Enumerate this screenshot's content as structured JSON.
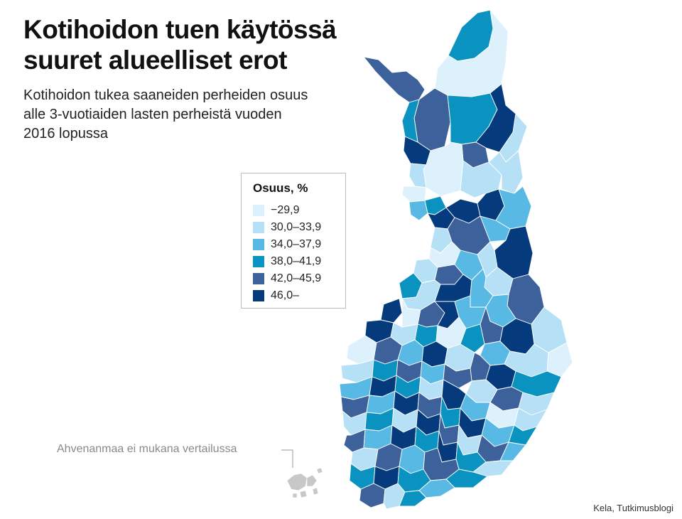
{
  "title": {
    "line1": "Kotihoidon tuen käytössä",
    "line2": "suuret alueelliset erot"
  },
  "subtitle": {
    "line1": "Kotihoidon tukea saaneiden perheiden osuus",
    "line2": "alle 3-vuotiaiden lasten perheistä vuoden",
    "line3": "2016 lopussa"
  },
  "legend": {
    "title": "Osuus, %",
    "items": [
      {
        "label": "−29,9",
        "color": "#dcf1fb"
      },
      {
        "label": "30,0–33,9",
        "color": "#b6e0f5"
      },
      {
        "label": "34,0–37,9",
        "color": "#59b9e5"
      },
      {
        "label": "38,0–41,9",
        "color": "#0a93c0"
      },
      {
        "label": "42,0–45,9",
        "color": "#3d619b"
      },
      {
        "label": "46,0–",
        "color": "#053b7c"
      }
    ]
  },
  "note": "Ahvenanmaa ei mukana vertailussa",
  "source": "Kela, Tutkimusblogi",
  "colors": {
    "border": "#ffffff",
    "aland": "#c8c8c8",
    "leader_line": "#9a9a9a"
  }
}
